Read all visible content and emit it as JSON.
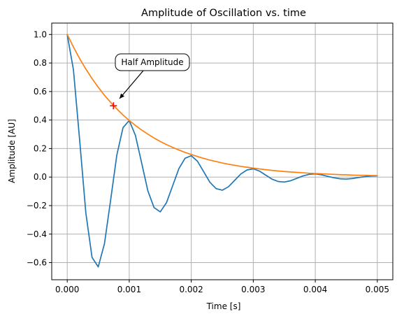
{
  "chart_data": {
    "type": "line",
    "title": "Amplitude of Oscillation vs. time",
    "xlabel": "Time [s]",
    "ylabel": "Amplitude [AU]",
    "xlim": [
      -0.00025,
      0.00525
    ],
    "ylim": [
      -0.72,
      1.08
    ],
    "grid": true,
    "x_ticks": [
      0.0,
      0.001,
      0.002,
      0.003,
      0.004,
      0.005
    ],
    "x_tick_labels": [
      "0.000",
      "0.001",
      "0.002",
      "0.003",
      "0.004",
      "0.005"
    ],
    "y_ticks": [
      -0.6,
      -0.4,
      -0.2,
      0.0,
      0.2,
      0.4,
      0.6,
      0.8,
      1.0
    ],
    "y_tick_labels": [
      "−0.6",
      "−0.4",
      "−0.2",
      "0.0",
      "0.2",
      "0.4",
      "0.6",
      "0.8",
      "1.0"
    ],
    "series": [
      {
        "color": "#1f77b4",
        "x": [
          0.0,
          0.0001,
          0.0002,
          0.0003,
          0.0004,
          0.0005,
          0.0006,
          0.0007,
          0.0008,
          0.0009,
          0.001,
          0.0011,
          0.0012,
          0.0013,
          0.0014,
          0.0015,
          0.0016,
          0.0017,
          0.0018,
          0.0019,
          0.002,
          0.0021,
          0.0022,
          0.0023,
          0.0024,
          0.0025,
          0.0026,
          0.0027,
          0.0028,
          0.0029,
          0.003,
          0.0031,
          0.0032,
          0.0033,
          0.0034,
          0.0035,
          0.0036,
          0.0037,
          0.0038,
          0.0039,
          0.004,
          0.0041,
          0.0042,
          0.0043,
          0.0044,
          0.0045,
          0.0046,
          0.0047,
          0.0048,
          0.0049,
          0.005
        ],
        "y": [
          1.0,
          0.753,
          0.261,
          -0.251,
          -0.563,
          -0.63,
          -0.468,
          -0.161,
          0.155,
          0.347,
          0.397,
          0.292,
          0.099,
          -0.096,
          -0.214,
          -0.244,
          -0.18,
          -0.061,
          0.059,
          0.132,
          0.15,
          0.111,
          0.038,
          -0.036,
          -0.081,
          -0.092,
          -0.068,
          -0.023,
          0.022,
          0.05,
          0.058,
          0.042,
          0.014,
          -0.014,
          -0.031,
          -0.035,
          -0.026,
          -0.009,
          0.008,
          0.019,
          0.022,
          0.016,
          0.005,
          -0.005,
          -0.012,
          -0.014,
          -0.01,
          -0.003,
          0.003,
          0.007,
          0.008
        ]
      },
      {
        "color": "#ff7f0e",
        "x": [
          0.0,
          0.0001,
          0.0002,
          0.0003,
          0.0004,
          0.0005,
          0.0006,
          0.0007,
          0.0008,
          0.0009,
          0.001,
          0.0011,
          0.0012,
          0.0013,
          0.0014,
          0.0015,
          0.0016,
          0.0017,
          0.0018,
          0.0019,
          0.002,
          0.0021,
          0.0022,
          0.0023,
          0.0024,
          0.0025,
          0.0026,
          0.0027,
          0.0028,
          0.0029,
          0.003,
          0.0031,
          0.0032,
          0.0033,
          0.0034,
          0.0035,
          0.0036,
          0.0037,
          0.0038,
          0.0039,
          0.004,
          0.0041,
          0.0042,
          0.0043,
          0.0044,
          0.0045,
          0.0046,
          0.0047,
          0.0048,
          0.0049,
          0.005
        ],
        "y": [
          1.0,
          0.912,
          0.831,
          0.758,
          0.691,
          0.63,
          0.574,
          0.524,
          0.478,
          0.435,
          0.397,
          0.362,
          0.33,
          0.301,
          0.274,
          0.25,
          0.228,
          0.208,
          0.19,
          0.173,
          0.158,
          0.144,
          0.131,
          0.119,
          0.109,
          0.099,
          0.09,
          0.083,
          0.075,
          0.069,
          0.063,
          0.057,
          0.052,
          0.047,
          0.043,
          0.039,
          0.036,
          0.033,
          0.03,
          0.027,
          0.025,
          0.023,
          0.021,
          0.019,
          0.017,
          0.016,
          0.014,
          0.013,
          0.012,
          0.011,
          0.01
        ]
      }
    ],
    "marker": {
      "x": 0.000745,
      "y": 0.5,
      "symbol": "+",
      "color": "#ff0000"
    },
    "annotation": {
      "text": "Half Amplitude",
      "x": 0.000745,
      "y": 0.5,
      "arrow": true
    }
  }
}
